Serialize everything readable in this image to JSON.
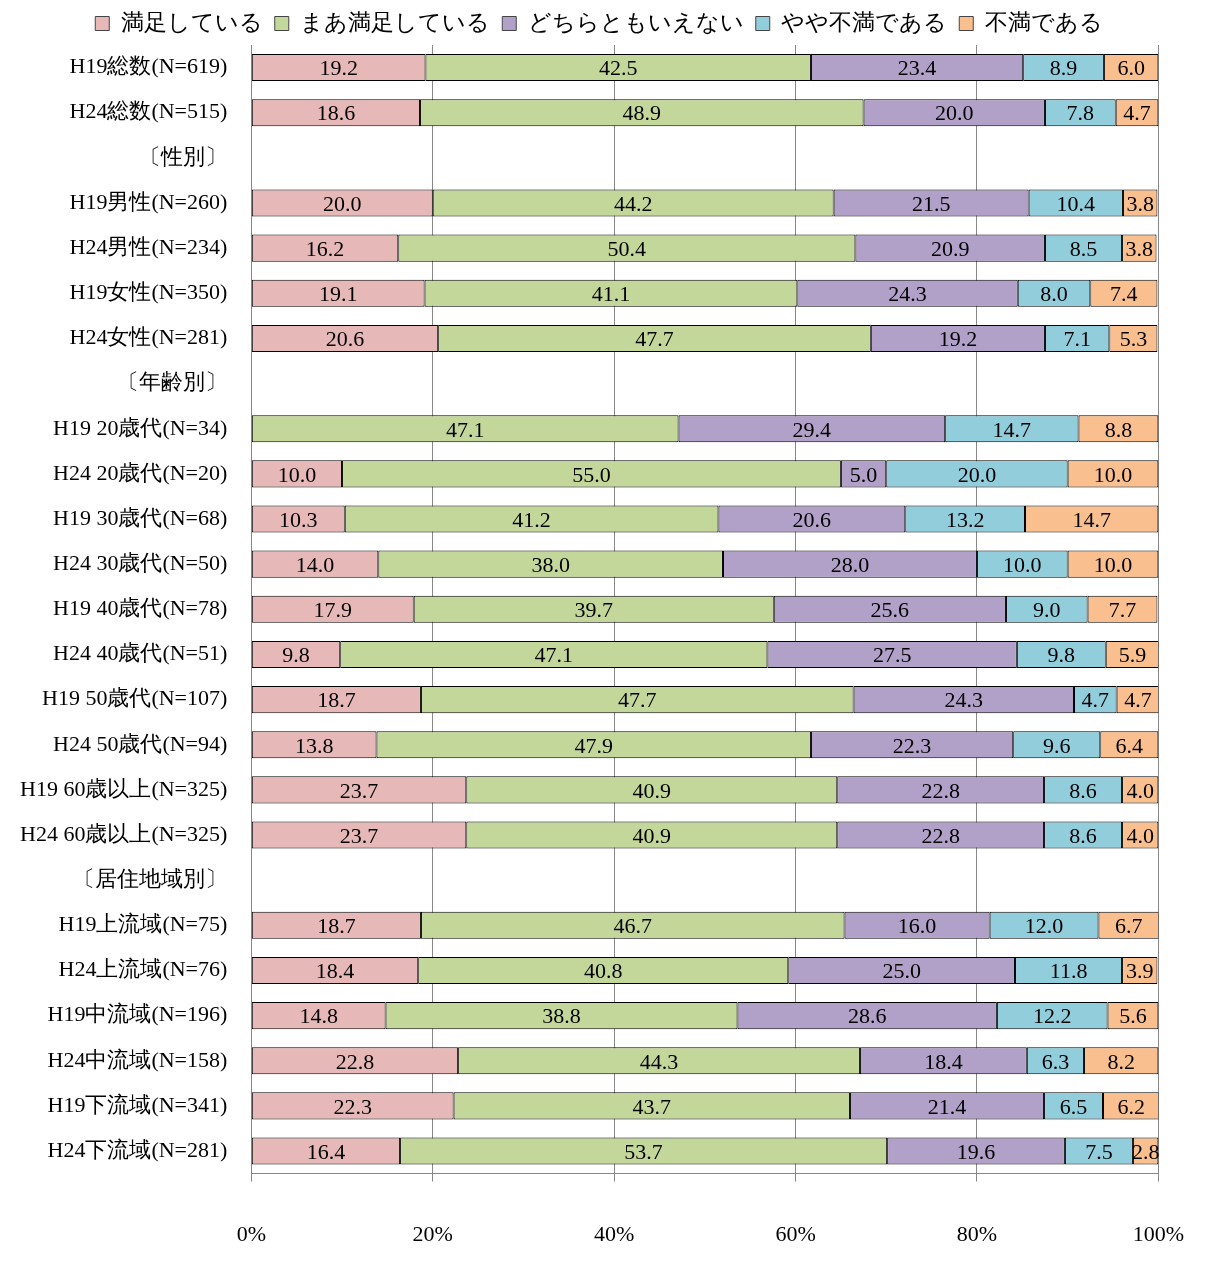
{
  "chart_data": {
    "type": "bar",
    "orientation": "horizontal",
    "stacked": true,
    "categories": [
      "H19総数(N=619)",
      "H24総数(N=515)",
      "〔性別〕",
      "H19男性(N=260)",
      "H24男性(N=234)",
      "H19女性(N=350)",
      "H24女性(N=281)",
      "〔年齢別〕",
      "H19 20歳代(N=34)",
      "H24 20歳代(N=20)",
      "H19 30歳代(N=68)",
      "H24 30歳代(N=50)",
      "H19 40歳代(N=78)",
      "H24 40歳代(N=51)",
      "H19 50歳代(N=107)",
      "H24 50歳代(N=94)",
      "H19 60歳以上(N=325)",
      "H24 60歳以上(N=325)",
      "〔居住地域別〕",
      "H19上流域(N=75)",
      "H24上流域(N=76)",
      "H19中流域(N=196)",
      "H24中流域(N=158)",
      "H19下流域(N=341)",
      "H24下流域(N=281)"
    ],
    "series": [
      {
        "name": "満足している",
        "color": "#e6b9b8",
        "values": [
          19.2,
          18.6,
          null,
          20.0,
          16.2,
          19.1,
          20.6,
          null,
          null,
          10.0,
          10.3,
          14.0,
          17.9,
          9.8,
          18.7,
          13.8,
          23.7,
          23.7,
          null,
          18.7,
          18.4,
          14.8,
          22.8,
          22.3,
          16.4
        ],
        "value_labels": [
          "19.2",
          "18.6",
          null,
          "20.0",
          "16.2",
          "19.1",
          "20.6",
          null,
          null,
          "10.0",
          "10.3",
          "14.0",
          "17.9",
          "9.8",
          "18.7",
          "13.8",
          "23.7",
          "23.7",
          null,
          "18.7",
          "18.4",
          "14.8",
          "22.8",
          "22.3",
          "16.4"
        ]
      },
      {
        "name": "まあ満足している",
        "color": "#c4d79b",
        "values": [
          42.5,
          48.9,
          null,
          44.2,
          50.4,
          41.1,
          47.7,
          null,
          47.1,
          55.0,
          41.2,
          38.0,
          39.7,
          47.1,
          47.7,
          47.9,
          40.9,
          40.9,
          null,
          46.7,
          40.8,
          38.8,
          44.3,
          43.7,
          53.7
        ],
        "value_labels": [
          "42.5",
          "48.9",
          null,
          "44.2",
          "50.4",
          "41.1",
          "47.7",
          null,
          "47.1",
          "55.0",
          "41.2",
          "38.0",
          "39.7",
          "47.1",
          "47.7",
          "47.9",
          "40.9",
          "40.9",
          null,
          "46.7",
          "40.8",
          "38.8",
          "44.3",
          "43.7",
          "53.7"
        ]
      },
      {
        "name": "どちらともいえない",
        "color": "#b1a0c7",
        "values": [
          23.4,
          20.0,
          null,
          21.5,
          20.9,
          24.3,
          19.2,
          null,
          29.4,
          5.0,
          20.6,
          28.0,
          25.6,
          27.5,
          24.3,
          22.3,
          22.8,
          22.8,
          null,
          16.0,
          25.0,
          28.6,
          18.4,
          21.4,
          19.6
        ],
        "value_labels": [
          "23.4",
          "20.0",
          null,
          "21.5",
          "20.9",
          "24.3",
          "19.2",
          null,
          "29.4",
          "5.0",
          "20.6",
          "28.0",
          "25.6",
          "27.5",
          "24.3",
          "22.3",
          "22.8",
          "22.8",
          null,
          "16.0",
          "25.0",
          "28.6",
          "18.4",
          "21.4",
          "19.6"
        ]
      },
      {
        "name": "やや不満である",
        "color": "#92cddc",
        "values": [
          8.9,
          7.8,
          null,
          10.4,
          8.5,
          8.0,
          7.1,
          null,
          14.7,
          20.0,
          13.2,
          10.0,
          9.0,
          9.8,
          4.7,
          9.6,
          8.6,
          8.6,
          null,
          12.0,
          11.8,
          12.2,
          6.3,
          6.5,
          7.5
        ],
        "value_labels": [
          "8.9",
          "7.8",
          null,
          "10.4",
          "8.5",
          "8.0",
          "7.1",
          null,
          "14.7",
          "20.0",
          "13.2",
          "10.0",
          "9.0",
          "9.8",
          "4.7",
          "9.6",
          "8.6",
          "8.6",
          null,
          "12.0",
          "11.8",
          "12.2",
          "6.3",
          "6.5",
          "7.5"
        ]
      },
      {
        "name": "不満である",
        "color": "#fabf8f",
        "values": [
          6.0,
          4.7,
          null,
          3.8,
          3.8,
          7.4,
          5.3,
          null,
          8.8,
          10.0,
          14.7,
          10.0,
          7.7,
          5.9,
          4.7,
          6.4,
          4.0,
          4.0,
          null,
          6.7,
          3.9,
          5.6,
          8.2,
          6.2,
          2.8
        ],
        "value_labels": [
          "6.0",
          "4.7",
          null,
          "3.8",
          "3.8",
          "7.4",
          "5.3",
          null,
          "8.8",
          "10.0",
          "14.7",
          "10.0",
          "7.7",
          "5.9",
          "4.7",
          "6.4",
          "4.0",
          "4.0",
          null,
          "6.7",
          "3.9",
          "5.6",
          "8.2",
          "6.2",
          "2.8"
        ]
      }
    ],
    "xlim": [
      0,
      100
    ],
    "xticks": [
      {
        "value": 0,
        "label": "0%"
      },
      {
        "value": 20,
        "label": "20%"
      },
      {
        "value": 40,
        "label": "40%"
      },
      {
        "value": 60,
        "label": "60%"
      },
      {
        "value": 80,
        "label": "80%"
      },
      {
        "value": 100,
        "label": "100%"
      }
    ],
    "grid": "x",
    "legend": "top"
  }
}
